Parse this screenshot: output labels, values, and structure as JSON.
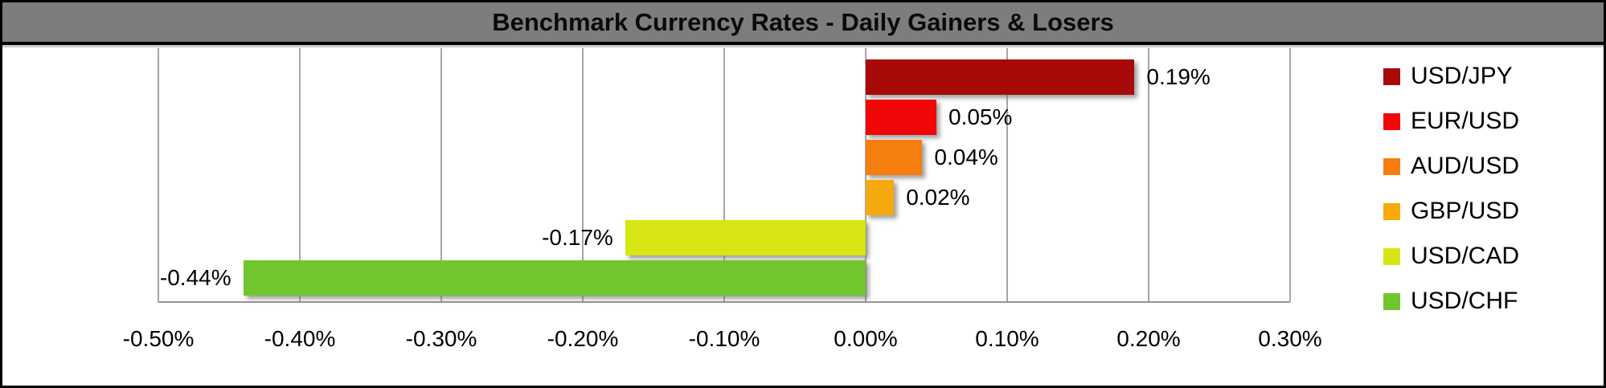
{
  "colors": {
    "title_bar_bg": "#7d7d7d",
    "title_text": "#0a0a0a",
    "frame": "#000000",
    "plot_bg": "#ffffff",
    "gridline": "#a6a6a6",
    "axis_line": "#949494",
    "label_text": "#000000"
  },
  "chart_data": {
    "type": "bar",
    "orientation": "horizontal",
    "title": "Benchmark Currency Rates - Daily Gainers & Losers",
    "categories": [
      "USD/JPY",
      "EUR/USD",
      "AUD/USD",
      "GBP/USD",
      "USD/CAD",
      "USD/CHF"
    ],
    "values": [
      0.19,
      0.05,
      0.04,
      0.02,
      -0.17,
      -0.44
    ],
    "value_labels": [
      "0.19%",
      "0.05%",
      "0.04%",
      "0.02%",
      "-0.17%",
      "-0.44%"
    ],
    "bar_colors": [
      "#a80909",
      "#f10707",
      "#f57e0f",
      "#f5a90d",
      "#d7e514",
      "#72c52e"
    ],
    "xlim": [
      -0.5,
      0.3
    ],
    "x_ticks": [
      -0.5,
      -0.4,
      -0.3,
      -0.2,
      -0.1,
      0.0,
      0.1,
      0.2,
      0.3
    ],
    "x_tick_labels": [
      "-0.50%",
      "-0.40%",
      "-0.30%",
      "-0.20%",
      "-0.10%",
      "0.00%",
      "0.10%",
      "0.20%",
      "0.30%"
    ],
    "grid": true,
    "xlabel": "",
    "ylabel": "",
    "legend": {
      "position": "right",
      "items": [
        {
          "label": "USD/JPY",
          "color": "#a80909"
        },
        {
          "label": "EUR/USD",
          "color": "#f10707"
        },
        {
          "label": "AUD/USD",
          "color": "#f57e0f"
        },
        {
          "label": "GBP/USD",
          "color": "#f5a90d"
        },
        {
          "label": "USD/CAD",
          "color": "#d7e514"
        },
        {
          "label": "USD/CHF",
          "color": "#72c52e"
        }
      ]
    }
  }
}
